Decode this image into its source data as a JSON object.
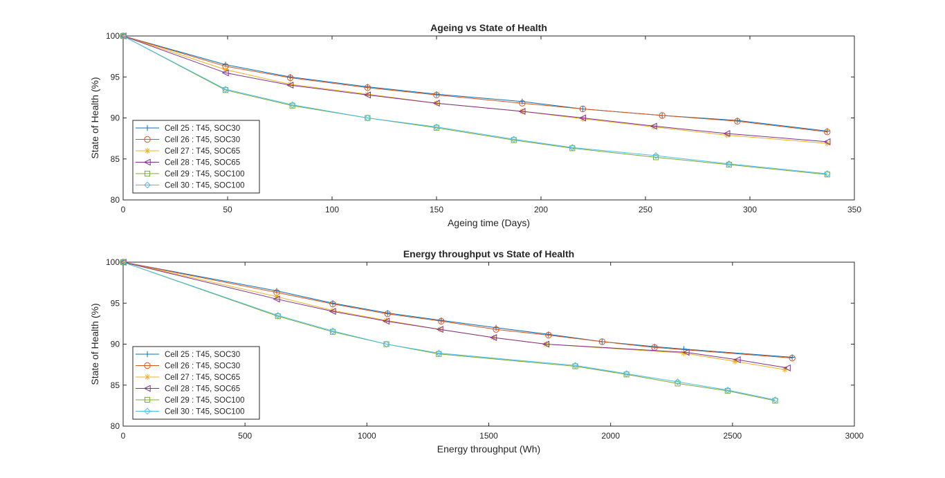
{
  "chart_data": [
    {
      "type": "line",
      "title": "Ageing vs State of Health",
      "xlabel": "Ageing time (Days)",
      "ylabel": "State of Health (%)",
      "xlim": [
        0,
        350
      ],
      "ylim": [
        80,
        100
      ],
      "xticks": [
        "0",
        "50",
        "100",
        "150",
        "200",
        "250",
        "300",
        "350"
      ],
      "yticks": [
        "80",
        "85",
        "90",
        "95",
        "100"
      ],
      "grid": false,
      "legend_position": "bottom-left",
      "series": [
        {
          "name": "Cell 25 : T45, SOC30",
          "color": "#0072BD",
          "marker": "plus",
          "x": [
            0,
            49,
            80,
            117,
            150,
            191,
            220,
            258,
            294,
            337
          ],
          "y": [
            100,
            96.5,
            95.0,
            93.8,
            92.9,
            92.0,
            91.1,
            90.3,
            89.7,
            88.4
          ]
        },
        {
          "name": "Cell 26 : T45, SOC30",
          "color": "#D95319",
          "marker": "circle",
          "x": [
            0,
            49,
            80,
            117,
            150,
            191,
            220,
            258,
            294,
            337
          ],
          "y": [
            100,
            96.3,
            94.9,
            93.7,
            92.8,
            91.8,
            91.1,
            90.3,
            89.6,
            88.3
          ]
        },
        {
          "name": "Cell 27 : T45, SOC65",
          "color": "#EDB120",
          "marker": "asterisk",
          "x": [
            0,
            49,
            80,
            117,
            150,
            191,
            220,
            254,
            289,
            337
          ],
          "y": [
            100,
            95.9,
            94.1,
            92.9,
            91.8,
            90.8,
            89.9,
            88.9,
            87.9,
            86.9
          ]
        },
        {
          "name": "Cell 28 : T45, SOC65",
          "color": "#7E2F8E",
          "marker": "triangle-left",
          "x": [
            0,
            49,
            80,
            117,
            150,
            191,
            220,
            254,
            289,
            337
          ],
          "y": [
            100,
            95.5,
            94.0,
            92.8,
            91.8,
            90.8,
            90.0,
            89.0,
            88.1,
            87.1
          ]
        },
        {
          "name": "Cell 29 : T45, SOC100",
          "color": "#77AC30",
          "marker": "square",
          "x": [
            0,
            49,
            81,
            117,
            150,
            187,
            215,
            255,
            290,
            337
          ],
          "y": [
            100,
            93.4,
            91.5,
            90.0,
            88.8,
            87.3,
            86.3,
            85.2,
            84.3,
            83.1
          ]
        },
        {
          "name": "Cell 30 : T45, SOC100",
          "color": "#4DBEEE",
          "marker": "diamond",
          "x": [
            0,
            49,
            81,
            117,
            150,
            187,
            215,
            255,
            290,
            337
          ],
          "y": [
            100,
            93.5,
            91.6,
            90.0,
            88.9,
            87.4,
            86.4,
            85.4,
            84.4,
            83.2
          ]
        }
      ]
    },
    {
      "type": "line",
      "title": "Energy throughput vs State of Health",
      "xlabel": "Energy throughput (Wh)",
      "ylabel": "State of Health (%)",
      "xlim": [
        0,
        3000
      ],
      "ylim": [
        80,
        100
      ],
      "xticks": [
        "0",
        "500",
        "1000",
        "1500",
        "2000",
        "2500",
        "3000"
      ],
      "yticks": [
        "80",
        "85",
        "90",
        "95",
        "100"
      ],
      "grid": false,
      "legend_position": "bottom-left",
      "series": [
        {
          "name": "Cell 25 : T45, SOC30",
          "color": "#0072BD",
          "marker": "plus",
          "x": [
            0,
            630,
            860,
            1085,
            1305,
            1530,
            1745,
            1965,
            2180,
            2300,
            2745
          ],
          "y": [
            100,
            96.5,
            95.0,
            93.8,
            92.9,
            92.0,
            91.2,
            90.3,
            89.7,
            89.4,
            88.4
          ]
        },
        {
          "name": "Cell 26 : T45, SOC30",
          "color": "#D95319",
          "marker": "circle",
          "x": [
            0,
            630,
            860,
            1085,
            1305,
            1530,
            1745,
            1965,
            2180,
            2745
          ],
          "y": [
            100,
            96.3,
            94.9,
            93.7,
            92.8,
            91.8,
            91.1,
            90.3,
            89.6,
            88.3
          ]
        },
        {
          "name": "Cell 27 : T45, SOC65",
          "color": "#EDB120",
          "marker": "asterisk",
          "x": [
            0,
            630,
            860,
            1080,
            1300,
            1520,
            1735,
            2300,
            2510,
            2715
          ],
          "y": [
            100,
            95.8,
            94.1,
            92.9,
            91.8,
            90.8,
            90.0,
            88.9,
            87.9,
            86.9
          ]
        },
        {
          "name": "Cell 28 : T45, SOC65",
          "color": "#7E2F8E",
          "marker": "triangle-left",
          "x": [
            0,
            630,
            860,
            1080,
            1300,
            1520,
            1735,
            2310,
            2520,
            2725
          ],
          "y": [
            100,
            95.5,
            94.0,
            92.8,
            91.8,
            90.8,
            90.0,
            89.0,
            88.1,
            87.1
          ]
        },
        {
          "name": "Cell 29 : T45, SOC100",
          "color": "#77AC30",
          "marker": "square",
          "x": [
            0,
            635,
            860,
            1080,
            1295,
            1855,
            2065,
            2275,
            2480,
            2675
          ],
          "y": [
            100,
            93.4,
            91.5,
            90.0,
            88.8,
            87.3,
            86.3,
            85.2,
            84.3,
            83.1
          ]
        },
        {
          "name": "Cell 30 : T45, SOC100",
          "color": "#4DBEEE",
          "marker": "diamond",
          "x": [
            0,
            635,
            860,
            1080,
            1295,
            1855,
            2065,
            2275,
            2480,
            2675
          ],
          "y": [
            100,
            93.5,
            91.6,
            90.0,
            88.9,
            87.4,
            86.4,
            85.4,
            84.4,
            83.2
          ]
        }
      ]
    }
  ]
}
